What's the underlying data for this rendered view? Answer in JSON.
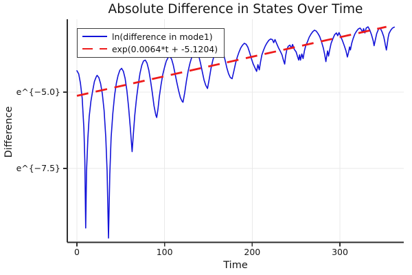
{
  "chart_data": {
    "type": "line",
    "title": "Absolute Difference in States Over Time",
    "xlabel": "Time",
    "ylabel": "Difference",
    "y_scale": "ln (natural log), ticks shown as e^{x}",
    "xlim": [
      -11,
      373
    ],
    "ylim_ln": [
      -9.9,
      -2.6
    ],
    "grid": true,
    "legend_position": "top-left",
    "x_ticks": [
      {
        "value": 0,
        "label": "0"
      },
      {
        "value": 100,
        "label": "100"
      },
      {
        "value": 200,
        "label": "200"
      },
      {
        "value": 300,
        "label": "300"
      }
    ],
    "y_ticks": [
      {
        "value": -5.0,
        "label": "e^{−5.0}"
      },
      {
        "value": -7.5,
        "label": "e^{−7.5}"
      }
    ],
    "series": [
      {
        "name": "ln(difference in mode1)",
        "color": "#1212d8",
        "style": "solid",
        "points": [
          [
            0,
            -4.3
          ],
          [
            2,
            -4.4
          ],
          [
            4,
            -4.7
          ],
          [
            6,
            -5.2
          ],
          [
            8,
            -6.2
          ],
          [
            9,
            -7.2
          ],
          [
            10,
            -9.45
          ],
          [
            11,
            -7.6
          ],
          [
            12.5,
            -6.5
          ],
          [
            14,
            -5.8
          ],
          [
            16,
            -5.3
          ],
          [
            18,
            -4.95
          ],
          [
            20,
            -4.65
          ],
          [
            22,
            -4.5
          ],
          [
            23,
            -4.45
          ],
          [
            25,
            -4.52
          ],
          [
            27,
            -4.72
          ],
          [
            29,
            -5.05
          ],
          [
            31,
            -5.6
          ],
          [
            33,
            -6.5
          ],
          [
            34.5,
            -7.6
          ],
          [
            36,
            -9.78
          ],
          [
            37.5,
            -7.7
          ],
          [
            39,
            -6.5
          ],
          [
            41,
            -5.7
          ],
          [
            43,
            -5.1
          ],
          [
            45,
            -4.7
          ],
          [
            47,
            -4.45
          ],
          [
            49,
            -4.28
          ],
          [
            51,
            -4.22
          ],
          [
            53,
            -4.32
          ],
          [
            55,
            -4.55
          ],
          [
            57,
            -4.95
          ],
          [
            59,
            -5.5
          ],
          [
            61,
            -6.2
          ],
          [
            63,
            -6.95
          ],
          [
            64.5,
            -6.35
          ],
          [
            66,
            -5.75
          ],
          [
            68,
            -5.2
          ],
          [
            70,
            -4.75
          ],
          [
            72,
            -4.38
          ],
          [
            74,
            -4.12
          ],
          [
            76,
            -3.98
          ],
          [
            78,
            -3.95
          ],
          [
            80,
            -4.05
          ],
          [
            82,
            -4.28
          ],
          [
            84,
            -4.62
          ],
          [
            86,
            -5.02
          ],
          [
            88,
            -5.45
          ],
          [
            90,
            -5.75
          ],
          [
            91,
            -5.83
          ],
          [
            92.5,
            -5.55
          ],
          [
            94,
            -5.15
          ],
          [
            96,
            -4.75
          ],
          [
            98,
            -4.42
          ],
          [
            100,
            -4.18
          ],
          [
            102,
            -3.98
          ],
          [
            104,
            -3.87
          ],
          [
            106,
            -3.83
          ],
          [
            108,
            -3.92
          ],
          [
            110,
            -4.12
          ],
          [
            112,
            -4.4
          ],
          [
            114,
            -4.68
          ],
          [
            116,
            -4.95
          ],
          [
            118,
            -5.18
          ],
          [
            120,
            -5.3
          ],
          [
            121,
            -5.33
          ],
          [
            123,
            -5.02
          ],
          [
            125,
            -4.62
          ],
          [
            127,
            -4.3
          ],
          [
            129,
            -4.05
          ],
          [
            131,
            -3.86
          ],
          [
            133,
            -3.7
          ],
          [
            135,
            -3.62
          ],
          [
            137,
            -3.66
          ],
          [
            139,
            -3.82
          ],
          [
            141,
            -4.05
          ],
          [
            143,
            -4.33
          ],
          [
            145,
            -4.6
          ],
          [
            147,
            -4.78
          ],
          [
            149,
            -4.88
          ],
          [
            151,
            -4.56
          ],
          [
            153,
            -4.22
          ],
          [
            155,
            -3.96
          ],
          [
            157,
            -3.76
          ],
          [
            159,
            -3.6
          ],
          [
            161,
            -3.5
          ],
          [
            163,
            -3.47
          ],
          [
            165,
            -3.56
          ],
          [
            167,
            -3.73
          ],
          [
            169,
            -3.95
          ],
          [
            171,
            -4.2
          ],
          [
            173,
            -4.4
          ],
          [
            175,
            -4.52
          ],
          [
            177,
            -4.56
          ],
          [
            179,
            -4.32
          ],
          [
            181,
            -4.05
          ],
          [
            183,
            -3.85
          ],
          [
            185,
            -3.68
          ],
          [
            187,
            -3.55
          ],
          [
            189,
            -3.46
          ],
          [
            191,
            -3.4
          ],
          [
            193,
            -3.43
          ],
          [
            195,
            -3.53
          ],
          [
            197,
            -3.7
          ],
          [
            199,
            -3.9
          ],
          [
            201,
            -4.07
          ],
          [
            203,
            -4.2
          ],
          [
            205,
            -4.32
          ],
          [
            206.5,
            -4.1
          ],
          [
            208,
            -4.27
          ],
          [
            209.5,
            -4.0
          ],
          [
            211,
            -3.78
          ],
          [
            213,
            -3.62
          ],
          [
            215,
            -3.48
          ],
          [
            217,
            -3.38
          ],
          [
            219,
            -3.3
          ],
          [
            221,
            -3.26
          ],
          [
            223,
            -3.28
          ],
          [
            224.5,
            -3.38
          ],
          [
            226,
            -3.28
          ],
          [
            228,
            -3.42
          ],
          [
            230,
            -3.55
          ],
          [
            232,
            -3.66
          ],
          [
            234,
            -3.78
          ],
          [
            235.5,
            -3.95
          ],
          [
            237,
            -4.08
          ],
          [
            238,
            -3.82
          ],
          [
            239.5,
            -3.6
          ],
          [
            241,
            -3.5
          ],
          [
            243,
            -3.46
          ],
          [
            244.5,
            -3.56
          ],
          [
            246,
            -3.44
          ],
          [
            248,
            -3.6
          ],
          [
            250,
            -3.68
          ],
          [
            251.5,
            -3.82
          ],
          [
            253,
            -3.95
          ],
          [
            254,
            -3.78
          ],
          [
            255,
            -3.95
          ],
          [
            256.5,
            -3.75
          ],
          [
            258,
            -3.9
          ],
          [
            259.5,
            -3.65
          ],
          [
            261,
            -3.48
          ],
          [
            263,
            -3.35
          ],
          [
            265,
            -3.2
          ],
          [
            267,
            -3.1
          ],
          [
            269,
            -3.02
          ],
          [
            271,
            -2.97
          ],
          [
            273,
            -3.0
          ],
          [
            275,
            -3.08
          ],
          [
            277,
            -3.18
          ],
          [
            279,
            -3.35
          ],
          [
            281,
            -3.55
          ],
          [
            282.5,
            -3.75
          ],
          [
            284,
            -4.0
          ],
          [
            285,
            -3.8
          ],
          [
            286,
            -3.65
          ],
          [
            287,
            -3.82
          ],
          [
            288.5,
            -3.6
          ],
          [
            290,
            -3.4
          ],
          [
            292,
            -3.25
          ],
          [
            294,
            -3.12
          ],
          [
            296,
            -3.06
          ],
          [
            297.5,
            -3.15
          ],
          [
            299,
            -3.05
          ],
          [
            301,
            -3.18
          ],
          [
            303,
            -3.32
          ],
          [
            305,
            -3.48
          ],
          [
            307,
            -3.65
          ],
          [
            308.5,
            -3.85
          ],
          [
            310,
            -3.68
          ],
          [
            311,
            -3.52
          ],
          [
            312,
            -3.62
          ],
          [
            313.5,
            -3.4
          ],
          [
            315,
            -3.25
          ],
          [
            317,
            -3.1
          ],
          [
            319,
            -3.0
          ],
          [
            321,
            -2.93
          ],
          [
            323,
            -2.9
          ],
          [
            324.5,
            -2.96
          ],
          [
            326,
            -3.05
          ],
          [
            327,
            -2.92
          ],
          [
            328.5,
            -3.06
          ],
          [
            330,
            -2.9
          ],
          [
            332,
            -2.86
          ],
          [
            334,
            -2.96
          ],
          [
            336,
            -3.12
          ],
          [
            338,
            -3.32
          ],
          [
            339,
            -3.48
          ],
          [
            340.5,
            -3.28
          ],
          [
            342,
            -3.08
          ],
          [
            344,
            -2.94
          ],
          [
            346,
            -2.9
          ],
          [
            348,
            -3.02
          ],
          [
            350,
            -3.18
          ],
          [
            351,
            -3.32
          ],
          [
            352,
            -3.48
          ],
          [
            353,
            -3.62
          ],
          [
            354,
            -3.42
          ],
          [
            355,
            -3.22
          ],
          [
            356,
            -3.08
          ],
          [
            358,
            -2.97
          ],
          [
            360,
            -2.9
          ],
          [
            362,
            -2.87
          ]
        ]
      },
      {
        "name": "exp(0.0064*t + -5.1204)",
        "color": "#ee1b1b",
        "style": "dashed",
        "trend": {
          "slope": 0.0064,
          "intercept": -5.1204,
          "t_start": 0,
          "t_end": 353
        }
      }
    ]
  },
  "legend": {
    "entries": [
      {
        "label": "ln(difference in mode1)",
        "color": "#1212d8",
        "style": "solid"
      },
      {
        "label": "exp(0.0064*t + -5.1204)",
        "color": "#ee1b1b",
        "style": "dashed"
      }
    ]
  },
  "colors": {
    "grid": "#e9e9e9",
    "axis": "#2e2e2e",
    "text": "#141414",
    "background": "#ffffff"
  }
}
